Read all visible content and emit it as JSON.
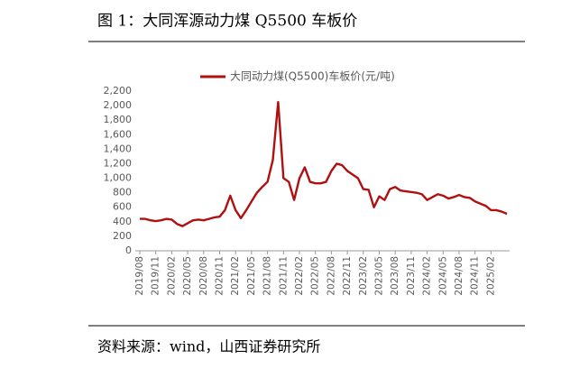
{
  "header": {
    "title": "图 1：大同浑源动力煤 Q5500 车板价"
  },
  "chart_data": {
    "type": "line",
    "categories": [
      "2019/08",
      null,
      null,
      "2019/11",
      null,
      null,
      "2020/02",
      null,
      null,
      "2020/05",
      null,
      null,
      "2020/08",
      null,
      null,
      "2020/11",
      null,
      null,
      "2021/02",
      null,
      null,
      "2021/05",
      null,
      null,
      "2021/08",
      null,
      null,
      "2021/11",
      null,
      null,
      "2022/02",
      null,
      null,
      "2022/05",
      null,
      null,
      "2022/08",
      null,
      null,
      "2022/11",
      null,
      null,
      "2023/02",
      null,
      null,
      "2023/05",
      null,
      null,
      "2023/08",
      null,
      null,
      "2023/11",
      null,
      null,
      "2024/02",
      null,
      null,
      "2024/05",
      null,
      null,
      "2024/08",
      null,
      null,
      "2024/11",
      null,
      null,
      "2025/02",
      null,
      null,
      null
    ],
    "series": [
      {
        "name": "大同动力煤(Q5500)车板价(元/吨)",
        "color": "#b01010",
        "values": [
          440,
          440,
          420,
          410,
          420,
          440,
          430,
          370,
          340,
          380,
          420,
          430,
          420,
          440,
          460,
          470,
          560,
          760,
          560,
          450,
          560,
          680,
          800,
          880,
          950,
          1250,
          2050,
          1000,
          950,
          700,
          1000,
          1150,
          950,
          930,
          930,
          950,
          1100,
          1200,
          1180,
          1100,
          1050,
          1000,
          850,
          840,
          600,
          750,
          700,
          850,
          880,
          830,
          820,
          810,
          800,
          780,
          700,
          740,
          780,
          760,
          720,
          740,
          770,
          740,
          730,
          680,
          650,
          620,
          560,
          560,
          540,
          510
        ]
      }
    ],
    "ylim": [
      0,
      2200
    ],
    "yticks": [
      0,
      200,
      400,
      600,
      800,
      {
        "value": 1000,
        "label": "1,000"
      },
      {
        "value": 1200,
        "label": "1,200"
      },
      {
        "value": 1400,
        "label": "1,400"
      },
      {
        "value": 1600,
        "label": "1,600"
      },
      {
        "value": 1800,
        "label": "1,800"
      },
      {
        "value": 2000,
        "label": "2,000"
      },
      {
        "value": 2200,
        "label": "2,200"
      }
    ],
    "legend": "top"
  },
  "footer": {
    "source": "资料来源：wind，山西证券研究所"
  }
}
